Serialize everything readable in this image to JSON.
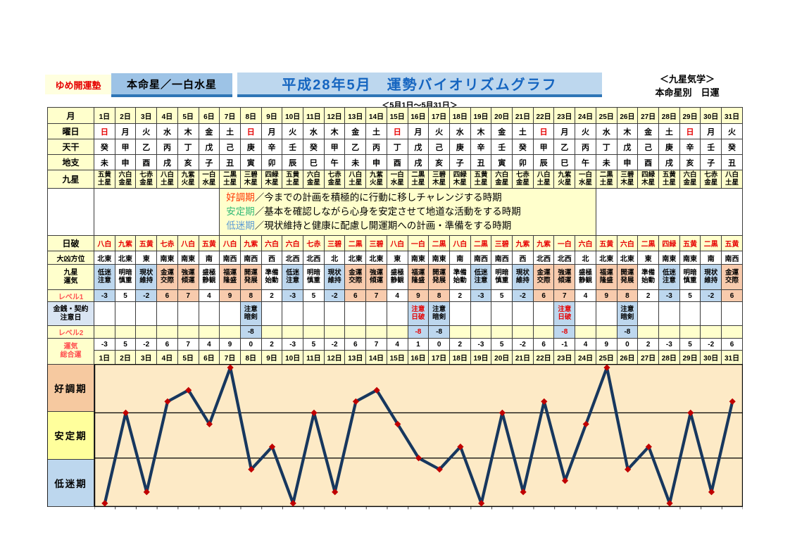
{
  "header": {
    "brand": "ゆめ開運塾",
    "honmeisei": "本命星／一白水星",
    "title": "平成28年5月　運勢バイオリズムグラフ",
    "date_range": "＜5月1日～5月31日＞",
    "right_line1": "＜九星気学＞",
    "right_line2": "本命星別　日運"
  },
  "row_labels": {
    "month": "月",
    "weekday": "曜日",
    "tenkan": "天干",
    "chishi": "地支",
    "kyusei": "九星",
    "nippa": "日破",
    "daikyo": "大凶方位",
    "unki1": "九星",
    "unki2": "運気",
    "level1": "レベル1",
    "kinsen1": "金銭・契約",
    "kinsen2": "注意日",
    "level2": "レベル2",
    "sogo1": "運気",
    "sogo2": "総合運"
  },
  "legend": {
    "lines": [
      {
        "term": "好調期",
        "desc": "／今までの計画を積極的に行動に移しチャレンジする時期",
        "color": "#ff3300"
      },
      {
        "term": "安定期",
        "desc": "／基本を確認しながら心身を安定させて地道な活動をする時期",
        "color": "#33bb77"
      },
      {
        "term": "低迷期",
        "desc": "／現状維持と健康に配慮し開運期への計画・準備をする時期",
        "color": "#5b9bd5"
      }
    ]
  },
  "days": [
    "1日",
    "2日",
    "3日",
    "4日",
    "5日",
    "6日",
    "7日",
    "8日",
    "9日",
    "10日",
    "11日",
    "12日",
    "13日",
    "14日",
    "15日",
    "16日",
    "17日",
    "18日",
    "19日",
    "20日",
    "21日",
    "22日",
    "23日",
    "24日",
    "25日",
    "26日",
    "27日",
    "28日",
    "29日",
    "30日",
    "31日"
  ],
  "weekdays": [
    "日",
    "月",
    "火",
    "水",
    "木",
    "金",
    "土",
    "日",
    "月",
    "火",
    "水",
    "木",
    "金",
    "土",
    "日",
    "月",
    "火",
    "水",
    "木",
    "金",
    "土",
    "日",
    "月",
    "火",
    "水",
    "木",
    "金",
    "土",
    "日",
    "月",
    "火"
  ],
  "tenkan": [
    "癸",
    "甲",
    "乙",
    "丙",
    "丁",
    "戊",
    "己",
    "庚",
    "辛",
    "壬",
    "癸",
    "甲",
    "乙",
    "丙",
    "丁",
    "戊",
    "己",
    "庚",
    "辛",
    "壬",
    "癸",
    "甲",
    "乙",
    "丙",
    "丁",
    "戊",
    "己",
    "庚",
    "辛",
    "壬",
    "癸"
  ],
  "chishi": [
    "未",
    "申",
    "酉",
    "戌",
    "亥",
    "子",
    "丑",
    "寅",
    "卯",
    "辰",
    "巳",
    "午",
    "未",
    "申",
    "酉",
    "戌",
    "亥",
    "子",
    "丑",
    "寅",
    "卯",
    "辰",
    "巳",
    "午",
    "未",
    "申",
    "酉",
    "戌",
    "亥",
    "子",
    "丑"
  ],
  "kyusei": [
    "五黄土星",
    "六白金星",
    "七赤金星",
    "八白土星",
    "九紫火星",
    "一白水星",
    "二黒土星",
    "三碧木星",
    "四緑木星",
    "五黄土星",
    "六白金星",
    "七赤金星",
    "八白土星",
    "九紫火星",
    "一白水星",
    "二黒土星",
    "三碧木星",
    "四緑木星",
    "五黄土星",
    "六白金星",
    "七赤金星",
    "八白土星",
    "九紫火星",
    "一白水星",
    "二黒土星",
    "三碧木星",
    "四緑木星",
    "五黄土星",
    "六白金星",
    "七赤金星",
    "八白土星"
  ],
  "nippa": [
    "八白",
    "九紫",
    "五黄",
    "七赤",
    "八白",
    "五黄",
    "八白",
    "九紫",
    "六白",
    "六白",
    "七赤",
    "三碧",
    "二黒",
    "三碧",
    "八白",
    "一白",
    "二黒",
    "八白",
    "二黒",
    "三碧",
    "九紫",
    "九紫",
    "一白",
    "六白",
    "五黄",
    "六白",
    "二黒",
    "四緑",
    "五黄",
    "二黒",
    "五黄"
  ],
  "daikyo": [
    "北東",
    "北東",
    "東",
    "南東",
    "南東",
    "南",
    "南西",
    "南西",
    "西",
    "北西",
    "北西",
    "北",
    "北東",
    "北東",
    "東",
    "南東",
    "南東",
    "南",
    "南西",
    "南西",
    "西",
    "北西",
    "北西",
    "北",
    "北東",
    "北東",
    "東",
    "南東",
    "南東",
    "南",
    "南西"
  ],
  "unki": [
    "低迷注意",
    "明暗慎重",
    "現状維持",
    "金運交際",
    "強運傾運",
    "盛極静観",
    "福運隆盛",
    "開運発展",
    "準備始動",
    "低迷注意",
    "明暗慎重",
    "現状維持",
    "金運交際",
    "強運傾運",
    "盛極静観",
    "福運隆盛",
    "開運発展",
    "準備始動",
    "低迷注意",
    "明暗慎重",
    "現状維持",
    "金運交際",
    "強運傾運",
    "盛極静観",
    "福運隆盛",
    "開運発展",
    "準備始動",
    "低迷注意",
    "明暗慎重",
    "現状維持",
    "金運交際"
  ],
  "unki_colors": {
    "低迷注意": "#bdd7ee",
    "明暗慎重": "#ffffff",
    "現状維持": "#bdd7ee",
    "金運交際": "#f8cbad",
    "強運傾運": "#f8cbad",
    "盛極静観": "#ffffff",
    "福運隆盛": "#f8cbad",
    "開運発展": "#f8cbad",
    "準備始動": "#ffffff"
  },
  "level1": [
    -3,
    5,
    -2,
    6,
    7,
    4,
    9,
    8,
    2,
    -3,
    5,
    -2,
    6,
    7,
    4,
    9,
    8,
    2,
    -3,
    5,
    -2,
    6,
    7,
    4,
    9,
    8,
    2,
    -3,
    5,
    -2,
    6
  ],
  "caution": [
    null,
    null,
    null,
    null,
    null,
    null,
    null,
    {
      "l1": "注意",
      "l2": "暗剣",
      "red": false
    },
    null,
    null,
    null,
    null,
    null,
    null,
    null,
    {
      "l1": "注意",
      "l2": "日破",
      "red": true
    },
    {
      "l1": "注意",
      "l2": "暗剣",
      "red": false
    },
    null,
    null,
    null,
    null,
    null,
    {
      "l1": "注意",
      "l2": "日破",
      "red": true
    },
    null,
    null,
    {
      "l1": "注意",
      "l2": "暗剣",
      "red": false
    },
    null,
    null,
    null,
    null,
    null
  ],
  "level2": [
    null,
    null,
    null,
    null,
    null,
    null,
    null,
    {
      "v": "-8",
      "red": false
    },
    null,
    null,
    null,
    null,
    null,
    null,
    null,
    {
      "v": "-8",
      "red": true
    },
    {
      "v": "-8",
      "red": false
    },
    null,
    null,
    null,
    null,
    null,
    {
      "v": "-8",
      "red": true
    },
    null,
    null,
    {
      "v": "-8",
      "red": false
    },
    null,
    null,
    null,
    null,
    null
  ],
  "sogoun": [
    -3,
    5,
    -2,
    6,
    7,
    4,
    9,
    0,
    2,
    -3,
    5,
    -2,
    6,
    7,
    4,
    1,
    0,
    2,
    -3,
    5,
    -2,
    6,
    -1,
    4,
    9,
    0,
    2,
    -3,
    5,
    -2,
    6
  ],
  "chart_data": {
    "type": "line",
    "title": "平成28年5月　運勢バイオリズムグラフ",
    "x_labels": [
      "1日",
      "2日",
      "3日",
      "4日",
      "5日",
      "6日",
      "7日",
      "8日",
      "9日",
      "10日",
      "11日",
      "12日",
      "13日",
      "14日",
      "15日",
      "16日",
      "17日",
      "18日",
      "19日",
      "20日",
      "21日",
      "22日",
      "23日",
      "24日",
      "25日",
      "26日",
      "27日",
      "28日",
      "29日",
      "30日",
      "31日"
    ],
    "values": [
      -3,
      5,
      -2,
      6,
      7,
      4,
      9,
      0,
      2,
      -3,
      5,
      -2,
      6,
      7,
      4,
      1,
      0,
      2,
      -3,
      5,
      -2,
      6,
      -1,
      4,
      9,
      0,
      2,
      -3,
      5,
      -2,
      6
    ],
    "ylim": [
      -3,
      9
    ],
    "bands": [
      {
        "label": "好調期",
        "range": [
          5,
          9
        ],
        "color": "#f6c9a0"
      },
      {
        "label": "安定期",
        "range": [
          1,
          5
        ],
        "color": "#ffff9c"
      },
      {
        "label": "低迷期",
        "range": [
          -3,
          1
        ],
        "color": "#bdd7ee"
      }
    ],
    "plot_bg": "#fdeac6",
    "line_color": "#17375e",
    "marker": "diamond",
    "marker_color": "#c00000",
    "grid": "band-boundaries-only",
    "legend_position": "left"
  }
}
